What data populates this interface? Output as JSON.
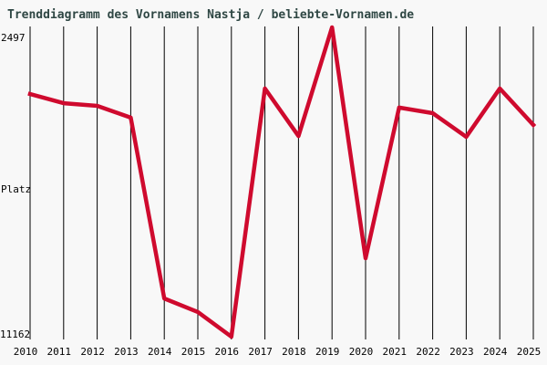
{
  "title": "Trenddiagramm des Vornamens Nastja / beliebte-Vornamen.de",
  "colors": {
    "background": "#F8F8F8",
    "title_text": "#2F4744",
    "line": "#CF0A2E",
    "gridline": "#000000",
    "tick_text": "#000000"
  },
  "chart_data": {
    "type": "line",
    "series_name": "Nastja",
    "title": "Trenddiagramm des Vornamens Nastja / beliebte-Vornamen.de",
    "xlabel": "",
    "ylabel": "Platz",
    "x": [
      "2010",
      "2011",
      "2012",
      "2013",
      "2014",
      "2015",
      "2016",
      "2017",
      "2018",
      "2019",
      "2020",
      "2021",
      "2022",
      "2023",
      "2024",
      "2025"
    ],
    "values": [
      4363,
      4620,
      4695,
      5025,
      10090,
      10470,
      11162,
      4210,
      5540,
      2497,
      8965,
      4745,
      4900,
      5565,
      4210,
      5230
    ],
    "y_axis_inverted": true,
    "ylim_top": 2497,
    "ylim_bottom": 11162,
    "ytick_top_label": "2497",
    "ytick_bottom_label": "11162",
    "best_rank": 2497,
    "best_rank_year": "2019",
    "worst_rank": 11162,
    "worst_rank_year": "2016",
    "grid": "vertical-only",
    "legend": "none"
  }
}
